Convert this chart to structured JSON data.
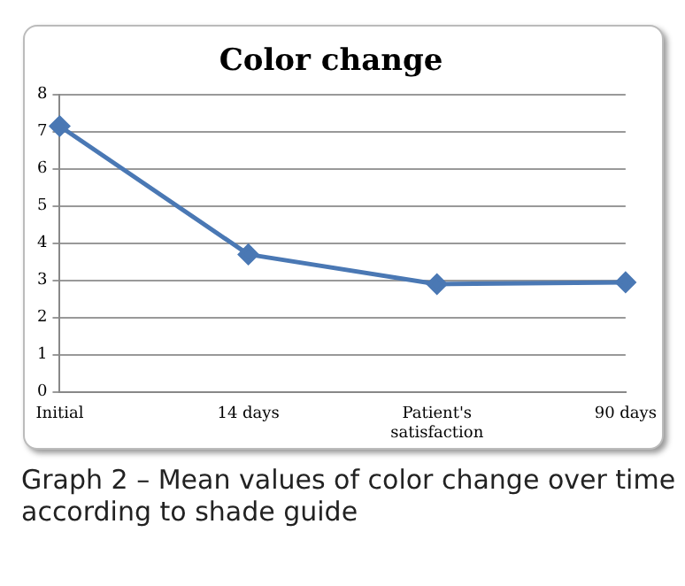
{
  "chart_data": {
    "type": "line",
    "title": "Color change",
    "categories": [
      "Initial",
      "14 days",
      "Patient's satisfaction",
      "90 days"
    ],
    "series": [
      {
        "color": "#4a78b4",
        "values": [
          7.15,
          3.7,
          2.9,
          2.95
        ]
      }
    ],
    "ylim": [
      0,
      8
    ],
    "yticks": [
      0,
      1,
      2,
      3,
      4,
      5,
      6,
      7,
      8
    ],
    "grid": "y",
    "legend": false,
    "marker": "diamond",
    "line_style": "solid",
    "annotations": [
      "Graph 2 – Mean values of color change over time according to shade guide"
    ]
  }
}
